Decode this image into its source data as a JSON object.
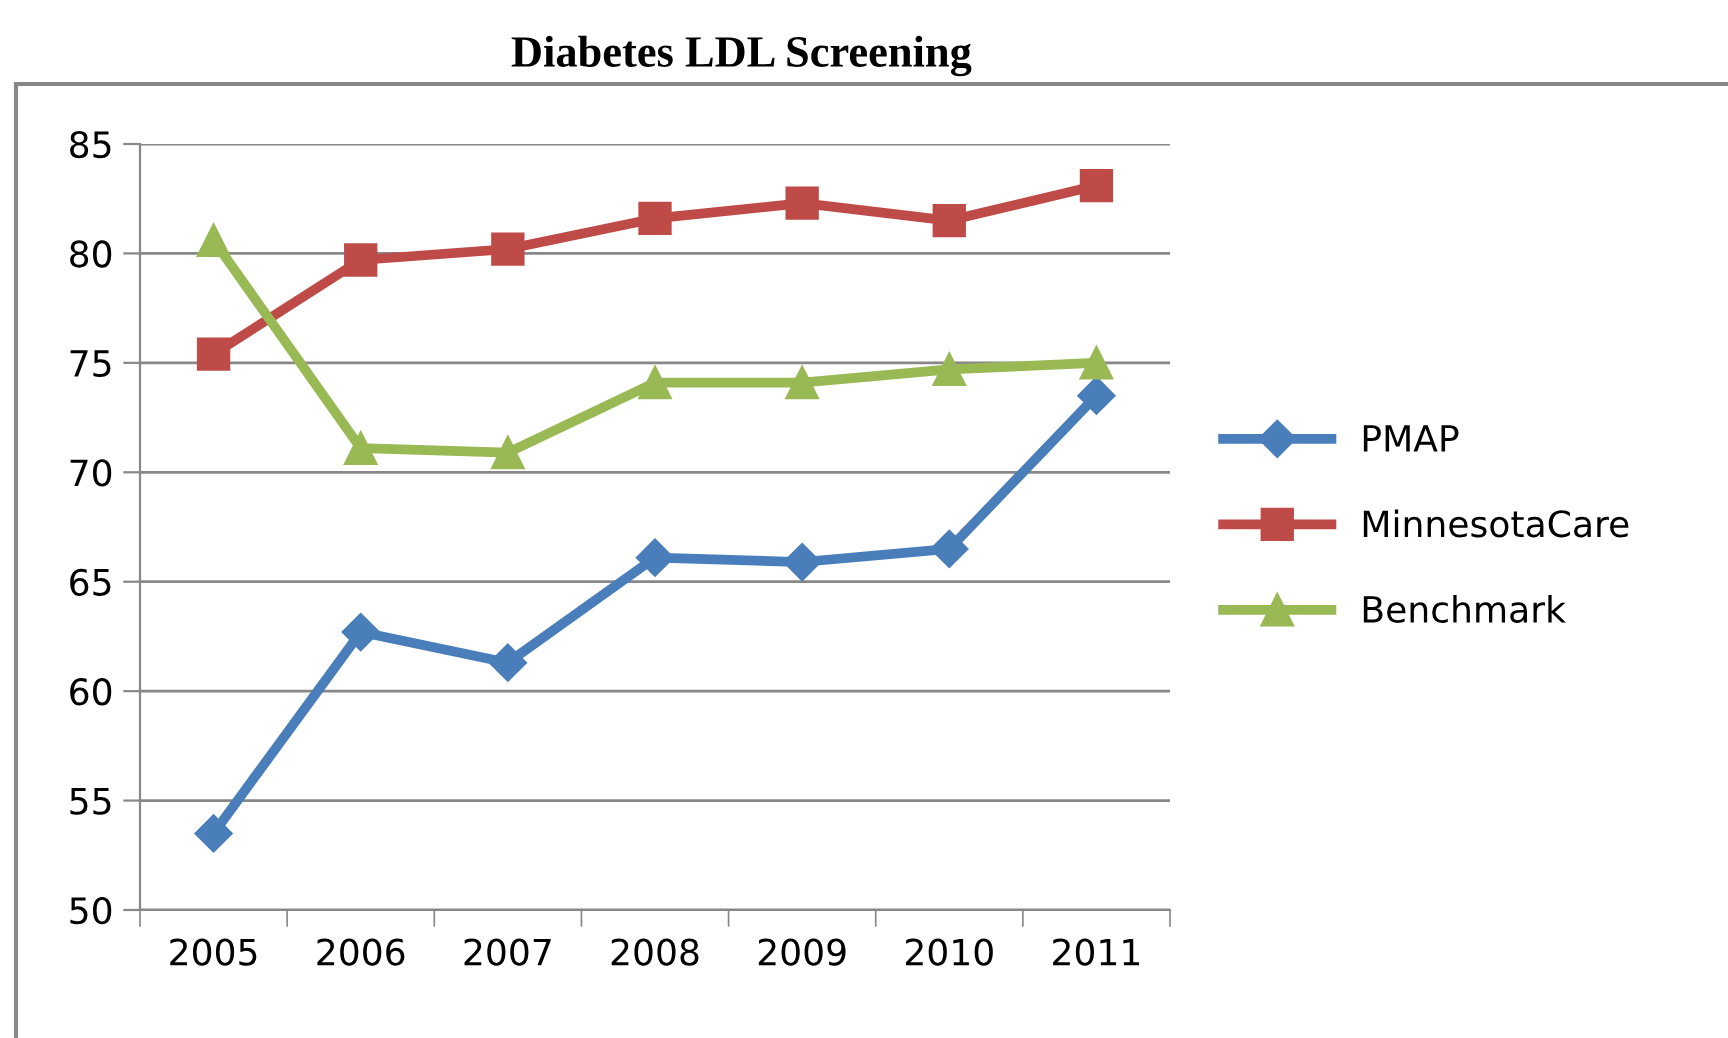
{
  "chart_data": {
    "type": "line",
    "title": "Diabetes LDL Screening",
    "categories": [
      "2005",
      "2006",
      "2007",
      "2008",
      "2009",
      "2010",
      "2011"
    ],
    "series": [
      {
        "name": "PMAP",
        "color": "#4a7ebb",
        "marker": "diamond",
        "values": [
          53.5,
          62.7,
          61.3,
          66.1,
          65.9,
          66.5,
          73.5
        ]
      },
      {
        "name": "MinnesotaCare",
        "color": "#be4b48",
        "marker": "square",
        "values": [
          75.4,
          79.7,
          80.2,
          81.6,
          82.3,
          81.5,
          83.1
        ]
      },
      {
        "name": "Benchmark",
        "color": "#98b954",
        "marker": "triangle",
        "values": [
          80.6,
          71.1,
          70.9,
          74.1,
          74.1,
          74.7,
          75.0
        ]
      }
    ],
    "ylim": [
      50,
      85
    ],
    "yticks": [
      50,
      55,
      60,
      65,
      70,
      75,
      80,
      85
    ],
    "grid": "y",
    "legend": "right",
    "line_style": "solid"
  }
}
